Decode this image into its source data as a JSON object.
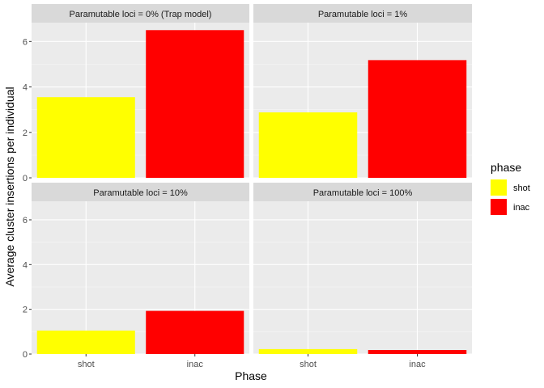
{
  "chart_data": {
    "type": "bar",
    "facet_layout": "2x2",
    "xlabel": "Phase",
    "ylabel": "Average cluster insertions per individual",
    "categories": [
      "shot",
      "inac"
    ],
    "ylim": [
      0,
      6.83
    ],
    "yticks": [
      0,
      2,
      4,
      6
    ],
    "grid": true,
    "legend": {
      "title": "phase",
      "position": "right",
      "entries": [
        {
          "label": "shot",
          "color": "#FFFF00"
        },
        {
          "label": "inac",
          "color": "#FF0000"
        }
      ]
    },
    "panels": [
      {
        "strip": "Paramutable loci = 0% (Trap model)",
        "values": [
          3.55,
          6.5
        ]
      },
      {
        "strip": "Paramutable loci = 1%",
        "values": [
          2.88,
          5.18
        ]
      },
      {
        "strip": "Paramutable loci = 10%",
        "values": [
          1.05,
          1.93
        ]
      },
      {
        "strip": "Paramutable loci = 100%",
        "values": [
          0.22,
          0.18
        ]
      }
    ]
  }
}
